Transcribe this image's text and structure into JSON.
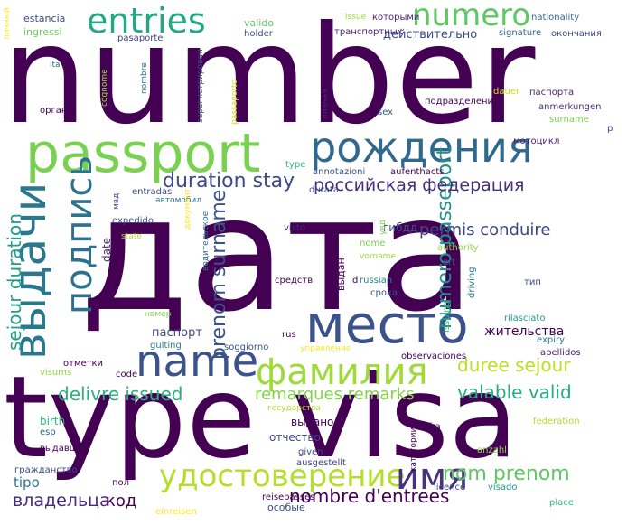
{
  "words": [
    {
      "text": "number",
      "color": "#440154"
    },
    {
      "text": "дата",
      "color": "#440154"
    },
    {
      "text": "type visa",
      "color": "#440154"
    },
    {
      "text": "passport",
      "color": "#7ad151"
    },
    {
      "text": "рождения",
      "color": "#31688e"
    },
    {
      "text": "место",
      "color": "#3b528b"
    },
    {
      "text": "name",
      "color": "#3b528b"
    },
    {
      "text": "фамилия",
      "color": "#a0da39"
    },
    {
      "text": "удостоверение",
      "color": "#b5de2b"
    },
    {
      "text": "имя",
      "color": "#46327e"
    },
    {
      "text": "entries",
      "color": "#22a884"
    },
    {
      "text": "numero",
      "color": "#5ec962"
    },
    {
      "text": "выдачи",
      "color": "#2a788e"
    },
    {
      "text": "подпись",
      "color": "#2c728e"
    },
    {
      "text": "duration stay",
      "color": "#3e4989"
    },
    {
      "text": "российская федерация",
      "color": "#472d7b"
    },
    {
      "text": "prenom surname",
      "color": "#3b528b"
    },
    {
      "text": "numero passeport",
      "color": "#21918c"
    },
    {
      "text": "sejour duration",
      "color": "#1fa187"
    },
    {
      "text": "permis conduire",
      "color": "#404688"
    },
    {
      "text": "duree sejour",
      "color": "#bddf26"
    },
    {
      "text": "delivre issued",
      "color": "#2ab07f"
    },
    {
      "text": "valable valid",
      "color": "#25ac82"
    },
    {
      "text": "remarques remarks",
      "color": "#84d44b"
    },
    {
      "text": "nombre d'entrees",
      "color": "#440154"
    },
    {
      "text": "nom prenom",
      "color": "#5ec962"
    },
    {
      "text": "владельца",
      "color": "#472a7a"
    },
    {
      "text": "код",
      "color": "#440154"
    },
    {
      "text": "tipo",
      "color": "#2a788e"
    },
    {
      "text": "estancia",
      "color": "#3e4989"
    },
    {
      "text": "ingressi",
      "color": "#6ccd5a"
    },
    {
      "text": "valido",
      "color": "#5ec962"
    },
    {
      "text": "issue",
      "color": "#a0da39"
    },
    {
      "text": "которыми",
      "color": "#482475"
    },
    {
      "text": "nationality",
      "color": "#31688e"
    },
    {
      "text": "действительно",
      "color": "#3e4989"
    },
    {
      "text": "транспортных",
      "color": "#482878"
    },
    {
      "text": "signature",
      "color": "#33638d"
    },
    {
      "text": "окончания",
      "color": "#3e4989"
    },
    {
      "text": "holder",
      "color": "#3e4989"
    },
    {
      "text": "pasaporte",
      "color": "#414487"
    },
    {
      "text": "ita",
      "color": "#31688e"
    },
    {
      "text": "орган",
      "color": "#440154"
    },
    {
      "text": "подразделения",
      "color": "#440154"
    },
    {
      "text": "паспорта",
      "color": "#481f70"
    },
    {
      "text": "anmerkungen",
      "color": "#46337f"
    },
    {
      "text": "surname",
      "color": "#7ad151"
    },
    {
      "text": "dauer",
      "color": "#cae11f"
    },
    {
      "text": "sex",
      "color": "#39558c"
    },
    {
      "text": "мотоцикл",
      "color": "#482173"
    },
    {
      "text": "annotazioni",
      "color": "#39558c"
    },
    {
      "text": "aufenthacts",
      "color": "#440154"
    },
    {
      "text": "durata",
      "color": "#3b528b"
    },
    {
      "text": "entradas",
      "color": "#3e4989"
    },
    {
      "text": "автомобил",
      "color": "#2c728e"
    },
    {
      "text": "expedido",
      "color": "#3b528b"
    },
    {
      "text": "state",
      "color": "#b5de2b"
    },
    {
      "text": "date",
      "color": "#482878"
    },
    {
      "text": "visto",
      "color": "#482878"
    },
    {
      "text": "гибдд",
      "color": "#3b528b"
    },
    {
      "text": "nome",
      "color": "#7ad151"
    },
    {
      "text": "vorname",
      "color": "#9dd93b"
    },
    {
      "text": "authority",
      "color": "#93d741"
    },
    {
      "text": "art",
      "color": "#3b528b"
    },
    {
      "text": "driving",
      "color": "#287c8e"
    },
    {
      "text": "тип",
      "color": "#3e4989"
    },
    {
      "text": "средств",
      "color": "#440154"
    },
    {
      "text": "russian",
      "color": "#25848e"
    },
    {
      "text": "срока",
      "color": "#3b528b"
    },
    {
      "text": "issuing",
      "color": "#35b779"
    },
    {
      "text": "rilasciato",
      "color": "#1f9e89"
    },
    {
      "text": "expiry",
      "color": "#2a788e"
    },
    {
      "text": "apellidos",
      "color": "#482475"
    },
    {
      "text": "жительства",
      "color": "#440154"
    },
    {
      "text": "номер",
      "color": "#7ad151"
    },
    {
      "text": "паспорт",
      "color": "#3e4989"
    },
    {
      "text": "rus",
      "color": "#440154"
    },
    {
      "text": "soggiorno",
      "color": "#3b528b"
    },
    {
      "text": "gulting",
      "color": "#2a788e"
    },
    {
      "text": "управление",
      "color": "#fde725"
    },
    {
      "text": "observaciones",
      "color": "#440154"
    },
    {
      "text": "visums",
      "color": "#8ed645"
    },
    {
      "text": "отметки",
      "color": "#440154"
    },
    {
      "text": "code",
      "color": "#440154"
    },
    {
      "text": "государства",
      "color": "#b5de2b"
    },
    {
      "text": "выдано",
      "color": "#440154"
    },
    {
      "text": "birth",
      "color": "#2fb47c"
    },
    {
      "text": "esp",
      "color": "#31688e"
    },
    {
      "text": "отчество",
      "color": "#3e4989"
    },
    {
      "text": "выдавший",
      "color": "#440154"
    },
    {
      "text": "fra",
      "color": "#440154"
    },
    {
      "text": "federation",
      "color": "#b5de2b"
    },
    {
      "text": "anzahl",
      "color": "#8ed645"
    },
    {
      "text": "given",
      "color": "#3e4989"
    },
    {
      "text": "ausgestellt",
      "color": "#414487"
    },
    {
      "text": "гражданство",
      "color": "#3e4989"
    },
    {
      "text": "пол",
      "color": "#440154"
    },
    {
      "text": "licence",
      "color": "#3e4989"
    },
    {
      "text": "visado",
      "color": "#1e9c89"
    },
    {
      "text": "reisepasses",
      "color": "#440154"
    },
    {
      "text": "особые",
      "color": "#3e4989"
    },
    {
      "text": "einreisen",
      "color": "#fde725"
    },
    {
      "text": "place",
      "color": "#35b779"
    },
    {
      "text": "категории",
      "color": "#440154"
    },
    {
      "text": "личный",
      "color": "#fde725"
    },
    {
      "text": "cognome",
      "color": "#a0da39"
    },
    {
      "text": "nombre",
      "color": "#2c728e"
    },
    {
      "text": "зарегистрирован",
      "color": "#3e4989"
    },
    {
      "text": "passaporto",
      "color": "#d2e21b"
    },
    {
      "text": "личная",
      "color": "#482878"
    },
    {
      "text": "pnrus",
      "color": "#35b779"
    },
    {
      "text": "type",
      "color": "#3e4989"
    },
    {
      "text": "мвд",
      "color": "#fde725"
    },
    {
      "text": "документ",
      "color": "#2c728e"
    },
    {
      "text": "водительское",
      "color": "#440154"
    },
    {
      "text": "выдан",
      "color": "#7ad151"
    },
    {
      "text": "увд",
      "color": "#440154"
    },
    {
      "text": "d",
      "color": "#3e4989"
    },
    {
      "text": "p",
      "color": "#3e4989"
    }
  ]
}
